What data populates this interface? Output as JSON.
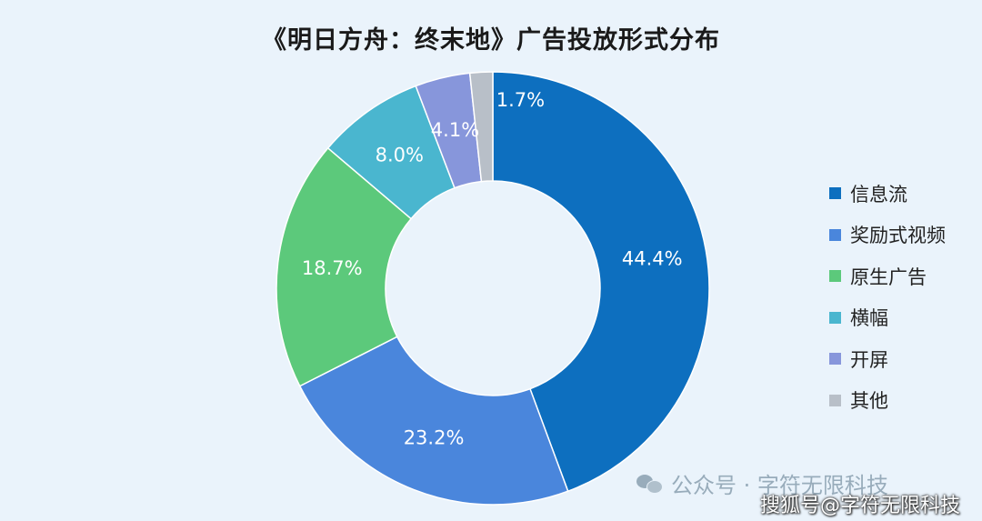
{
  "chart_data": {
    "type": "pie",
    "title": "《明日方舟：终末地》广告投放形式分布",
    "donut": true,
    "legend_position": "right",
    "slices": [
      {
        "label": "信息流",
        "value": 44.4,
        "display": "44.4%",
        "color": "#0d6fbf"
      },
      {
        "label": "奖励式视频",
        "value": 23.2,
        "display": "23.2%",
        "color": "#4a86dc"
      },
      {
        "label": "原生广告",
        "value": 18.7,
        "display": "18.7%",
        "color": "#5cc97b"
      },
      {
        "label": "横幅",
        "value": 8.0,
        "display": "8.0%",
        "color": "#4ab6cf"
      },
      {
        "label": "开屏",
        "value": 4.1,
        "display": "4.1%",
        "color": "#8796db"
      },
      {
        "label": "其他",
        "value": 1.7,
        "display": "1.7%",
        "color": "#b8bfc8"
      }
    ]
  },
  "watermarks": {
    "wechat_icon": "wechat-icon",
    "line1": "公众号 · 字符无限科技",
    "line2": "搜狐号@字符无限科技"
  }
}
